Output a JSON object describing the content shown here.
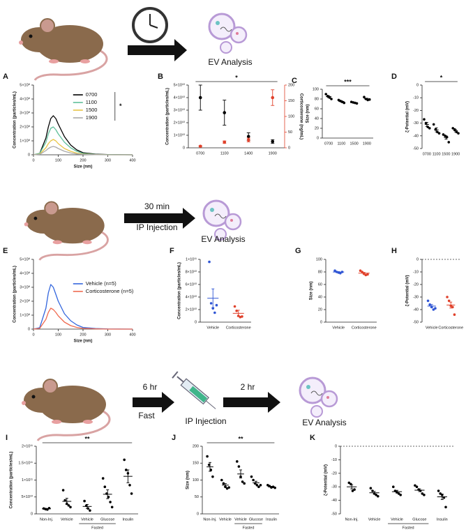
{
  "schematics": [
    {
      "labels": [
        "EV Analysis"
      ]
    },
    {
      "labels": [
        "30 min",
        "IP Injection",
        "EV Analysis"
      ]
    },
    {
      "labels": [
        "6 hr",
        "Fast",
        "IP Injection",
        "2 hr",
        "EV Analysis"
      ]
    }
  ],
  "chart_data": [
    {
      "type": "line",
      "panel": "A",
      "ylabel": "Concentration (particles/mL)",
      "xlabel": "Size (nm)",
      "x": [
        0,
        25,
        50,
        60,
        70,
        80,
        90,
        100,
        125,
        150,
        175,
        200,
        250,
        300,
        400
      ],
      "xlim": [
        0,
        400
      ],
      "xticks": [
        0,
        100,
        200,
        300,
        400
      ],
      "ylim": [
        0,
        500000000
      ],
      "yticks": [
        0,
        {
          "value": 100000000,
          "label": "1×10⁸"
        },
        {
          "value": 200000000,
          "label": "2×10⁸"
        },
        {
          "value": 300000000,
          "label": "3×10⁸"
        },
        {
          "value": 400000000,
          "label": "4×10⁸"
        },
        {
          "value": 500000000,
          "label": "5×10⁸"
        }
      ],
      "legend": "upper right",
      "annotation": "*",
      "series": [
        {
          "name": "0700",
          "color": "#000000",
          "values": [
            0,
            10000000,
            120000000,
            200000000,
            260000000,
            280000000,
            260000000,
            220000000,
            130000000,
            70000000,
            35000000,
            15000000,
            5000000,
            2000000,
            0
          ]
        },
        {
          "name": "1100",
          "color": "#5fbf9a",
          "values": [
            0,
            10000000,
            90000000,
            150000000,
            190000000,
            200000000,
            180000000,
            150000000,
            90000000,
            50000000,
            25000000,
            10000000,
            3000000,
            1000000,
            0
          ]
        },
        {
          "name": "1500",
          "color": "#e8c547",
          "values": [
            0,
            5000000,
            50000000,
            80000000,
            100000000,
            110000000,
            100000000,
            80000000,
            45000000,
            25000000,
            12000000,
            5000000,
            2000000,
            0,
            0
          ]
        },
        {
          "name": "1900",
          "color": "#aaaaaa",
          "values": [
            0,
            3000000,
            30000000,
            45000000,
            55000000,
            60000000,
            55000000,
            45000000,
            25000000,
            13000000,
            6000000,
            3000000,
            1000000,
            0,
            0
          ]
        }
      ]
    },
    {
      "type": "errorbar",
      "panel": "B",
      "ylabel": "Concentration (particles/mL)",
      "y2label": "Corticosterone (ng/mL)",
      "categories": [
        "0700",
        "1100",
        "1400",
        "1900"
      ],
      "ylim": [
        0,
        50000000000
      ],
      "yticks": [
        0,
        {
          "value": 10000000000,
          "label": "1×10¹⁰"
        },
        {
          "value": 20000000000,
          "label": "2×10¹⁰"
        },
        {
          "value": 30000000000,
          "label": "3×10¹⁰"
        },
        {
          "value": 40000000000,
          "label": "4×10¹⁰"
        },
        {
          "value": 50000000000,
          "label": "5×10¹⁰"
        }
      ],
      "y2lim": [
        0,
        200
      ],
      "y2ticks": [
        0,
        50,
        100,
        150,
        200
      ],
      "annotation": "*",
      "series": [
        {
          "color": "#000000",
          "values": [
            40000000000,
            28000000000,
            9000000000,
            5000000000
          ],
          "errors": [
            10000000000,
            10000000000,
            3000000000,
            1500000000
          ]
        },
        {
          "color": "#e0412b",
          "axis": "y2",
          "values": [
            5,
            18,
            25,
            160
          ],
          "errors": [
            2,
            4,
            6,
            25
          ]
        }
      ]
    },
    {
      "type": "dot",
      "panel": "C",
      "ylabel": "Size (nm)",
      "color": "#000000",
      "categories": [
        "0700",
        "1100",
        "1500",
        "1900"
      ],
      "ylim": [
        0,
        100
      ],
      "yticks": [
        0,
        20,
        40,
        60,
        80,
        100
      ],
      "annotation": "***",
      "values": [
        84.8,
        75,
        72.5,
        80.3
      ],
      "errors": [
        2,
        1.3,
        0.6,
        1.3
      ],
      "points": [
        [
          90,
          86,
          83,
          80
        ],
        [
          78,
          76,
          74,
          72
        ],
        [
          74,
          73,
          72,
          71
        ],
        [
          84,
          80,
          78,
          79
        ]
      ]
    },
    {
      "type": "dot",
      "panel": "D",
      "ylabel": "ζ-Potential (mV)",
      "color": "#000000",
      "categories": [
        "0700",
        "1100",
        "1500",
        "1900"
      ],
      "ylim": [
        -50,
        0
      ],
      "yticks": [
        0,
        -10,
        -20,
        -30,
        -40,
        -50
      ],
      "annotation": "*",
      "values": [
        -31,
        -35.3,
        -41.3,
        -36
      ],
      "errors": [
        1.6,
        1.6,
        1.3,
        0.9
      ],
      "points": [
        [
          -27,
          -30,
          -33,
          -34
        ],
        [
          -31,
          -35,
          -37,
          -38
        ],
        [
          -39,
          -40,
          -41,
          -45
        ],
        [
          -34,
          -35,
          -37,
          -38
        ]
      ]
    },
    {
      "type": "line",
      "panel": "E",
      "ylabel": "Concentration (particles/mL)",
      "xlabel": "Size (nm)",
      "x": [
        0,
        25,
        50,
        60,
        70,
        80,
        90,
        100,
        125,
        150,
        175,
        200,
        250,
        300,
        400
      ],
      "xlim": [
        0,
        400
      ],
      "xticks": [
        0,
        100,
        200,
        300,
        400
      ],
      "ylim": [
        0,
        500000000
      ],
      "yticks": [
        0,
        {
          "value": 100000000,
          "label": "1×10⁸"
        },
        {
          "value": 200000000,
          "label": "2×10⁸"
        },
        {
          "value": 300000000,
          "label": "3×10⁸"
        },
        {
          "value": 400000000,
          "label": "4×10⁸"
        },
        {
          "value": 500000000,
          "label": "5×10⁸"
        }
      ],
      "legend": "center right",
      "series": [
        {
          "name": "Vehicle (n=5)",
          "color": "#3366dd",
          "values": [
            0,
            10000000,
            150000000,
            260000000,
            320000000,
            300000000,
            250000000,
            200000000,
            110000000,
            60000000,
            30000000,
            12000000,
            4000000,
            1000000,
            0
          ]
        },
        {
          "name": "Corticosterone (n=5)",
          "color": "#ef6a50",
          "values": [
            0,
            5000000,
            70000000,
            120000000,
            150000000,
            140000000,
            120000000,
            95000000,
            50000000,
            25000000,
            12000000,
            5000000,
            2000000,
            0,
            0
          ]
        }
      ]
    },
    {
      "type": "dot",
      "panel": "F",
      "ylabel": "Concentration (particles/mL)",
      "colors": [
        "#2f55d4",
        "#e0412b"
      ],
      "categories": [
        "Vehicle",
        "Corticosterone"
      ],
      "ylim": [
        0,
        100000000000
      ],
      "yticks": [
        0,
        {
          "value": 20000000000,
          "label": "2×10¹⁰"
        },
        {
          "value": 40000000000,
          "label": "4×10¹⁰"
        },
        {
          "value": 60000000000,
          "label": "6×10¹⁰"
        },
        {
          "value": 80000000000,
          "label": "8×10¹⁰"
        },
        {
          "value": 100000000000,
          "label": "1×10¹¹"
        }
      ],
      "values": [
        38000000000,
        14000000000
      ],
      "errors": [
        15000000000,
        5000000000
      ],
      "points": [
        [
          96000000000,
          30000000000,
          22000000000,
          15000000000,
          27000000000
        ],
        [
          25000000000,
          18000000000,
          10000000000,
          8000000000,
          9000000000
        ]
      ]
    },
    {
      "type": "dot",
      "panel": "G",
      "ylabel": "Size (nm)",
      "colors": [
        "#2f55d4",
        "#e0412b"
      ],
      "categories": [
        "Vehicle",
        "Corticosterone"
      ],
      "ylim": [
        0,
        100
      ],
      "yticks": [
        0,
        20,
        40,
        60,
        80,
        100
      ],
      "values": [
        79.8,
        78
      ],
      "errors": [
        0.7,
        1.3
      ],
      "points": [
        [
          82,
          80,
          79,
          78,
          80
        ],
        [
          82,
          80,
          77,
          75,
          76
        ]
      ]
    },
    {
      "type": "dot",
      "panel": "H",
      "ylabel": "ζ-Potential (mV)",
      "colors": [
        "#2f55d4",
        "#e0412b"
      ],
      "categories": [
        "Vehicle",
        "Corticosterone"
      ],
      "ylim": [
        -50,
        0
      ],
      "yticks": [
        0,
        -10,
        -20,
        -30,
        -40,
        -50
      ],
      "values": [
        -37.2,
        -36.4
      ],
      "errors": [
        1.2,
        2.4
      ],
      "points": [
        [
          -33,
          -36,
          -38,
          -40,
          -39
        ],
        [
          -30,
          -33,
          -37,
          -38,
          -44
        ]
      ]
    },
    {
      "type": "dot",
      "panel": "I",
      "ylabel": "Concentration (particles/mL)",
      "color": "#000000",
      "categories": [
        "Non-Inj.",
        "Vehicle",
        "Vehicle",
        "Glucose",
        "Insulin"
      ],
      "group_label": "Fasted",
      "ylim": [
        0,
        200000000000
      ],
      "yticks": [
        0,
        {
          "value": 50000000000,
          "label": "5×10¹⁰"
        },
        {
          "value": 100000000000,
          "label": "1×10¹¹"
        },
        {
          "value": 150000000000,
          "label": "1.5×10¹¹"
        },
        {
          "value": 200000000000,
          "label": "2×10¹¹"
        }
      ],
      "annotation": "**",
      "values": [
        15000000000,
        37000000000,
        22000000000,
        58000000000,
        111000000000
      ],
      "errors": [
        1000000000,
        9000000000,
        6000000000,
        13000000000,
        19000000000
      ],
      "points": [
        [
          16000000000,
          14000000000,
          13000000000,
          17000000000
        ],
        [
          70000000000,
          40000000000,
          30000000000,
          25000000000,
          20000000000
        ],
        [
          38000000000,
          24000000000,
          16000000000,
          10000000000
        ],
        [
          105000000000,
          80000000000,
          60000000000,
          50000000000,
          35000000000,
          20000000000
        ],
        [
          160000000000,
          130000000000,
          120000000000,
          85000000000,
          60000000000
        ]
      ]
    },
    {
      "type": "dot",
      "panel": "J",
      "ylabel": "Size (nm)",
      "color": "#000000",
      "categories": [
        "Non-Inj.",
        "Vehicle",
        "Vehicle",
        "Glucose",
        "Insulin"
      ],
      "group_label": "Fasted",
      "ylim": [
        0,
        200
      ],
      "yticks": [
        0,
        50,
        100,
        150,
        200
      ],
      "annotation": "**",
      "values": [
        139,
        85,
        118,
        92,
        80
      ],
      "errors": [
        13,
        4.5,
        12,
        4.5,
        1.5
      ],
      "points": [
        [
          170,
          145,
          130,
          110
        ],
        [
          100,
          90,
          80,
          75,
          78
        ],
        [
          155,
          140,
          110,
          95,
          90
        ],
        [
          110,
          100,
          90,
          85,
          80,
          85
        ],
        [
          85,
          82,
          78,
          80,
          77
        ]
      ]
    },
    {
      "type": "dot",
      "panel": "K",
      "ylabel": "ζ-Potential (mV)",
      "color": "#000000",
      "categories": [
        "Non-Inj.",
        "Vehicle",
        "Vehicle",
        "Glucose",
        "Insulin"
      ],
      "group_label": "Fasted",
      "ylim": [
        -50,
        0
      ],
      "yticks": [
        0,
        -10,
        -20,
        -30,
        -40,
        -50
      ],
      "values": [
        -30,
        -34.4,
        -33.6,
        -32.5,
        -37.4
      ],
      "errors": [
        1.5,
        1,
        1,
        1,
        2
      ],
      "points": [
        [
          -27,
          -28,
          -33,
          -32
        ],
        [
          -31,
          -33,
          -35,
          -36,
          -37
        ],
        [
          -30,
          -33,
          -34,
          -35,
          -36
        ],
        [
          -29,
          -30,
          -32,
          -33,
          -35,
          -36
        ],
        [
          -33,
          -35,
          -36,
          -38,
          -45
        ]
      ]
    }
  ]
}
